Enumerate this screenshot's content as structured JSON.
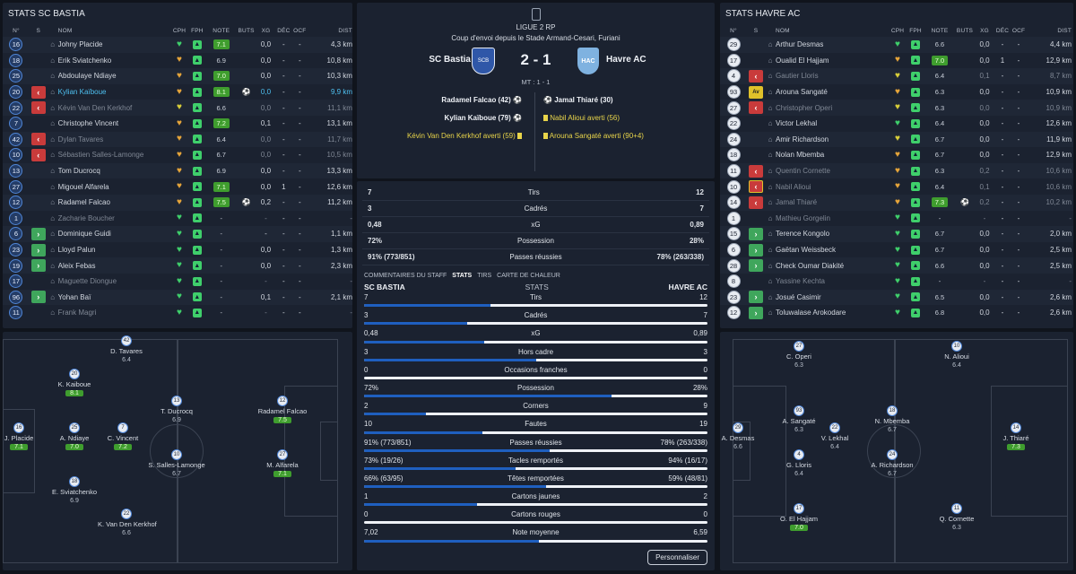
{
  "left": {
    "title": "STATS SC BASTIA",
    "cols": {
      "no": "N°",
      "s": "S",
      "name": "NOM",
      "cph": "CPH",
      "fph": "FPH",
      "note": "NOTE",
      "buts": "BUTS",
      "xg": "XG",
      "dec": "DÉC",
      "ocf": "OCF",
      "dist": "DIST"
    },
    "rows": [
      {
        "no": "16",
        "sub": "",
        "name": "Johny Placide",
        "cph": "g",
        "note": "7.1",
        "nc": "g",
        "buts": "",
        "xg": "0,0",
        "dec": "-",
        "ocf": "-",
        "dist": "4,3 km",
        "st": ""
      },
      {
        "no": "18",
        "sub": "",
        "name": "Erik Sviatchenko",
        "cph": "o",
        "note": "6.9",
        "nc": "",
        "buts": "",
        "xg": "0,0",
        "dec": "-",
        "ocf": "-",
        "dist": "10,8 km",
        "st": ""
      },
      {
        "no": "25",
        "sub": "",
        "name": "Abdoulaye Ndiaye",
        "cph": "o",
        "note": "7.0",
        "nc": "g",
        "buts": "",
        "xg": "0,0",
        "dec": "-",
        "ocf": "-",
        "dist": "10,3 km",
        "st": ""
      },
      {
        "no": "20",
        "sub": "out",
        "name": "Kylian Kaïboue",
        "cph": "o",
        "note": "8.1",
        "nc": "g",
        "buts": "⚽",
        "xg": "0,0",
        "dec": "-",
        "ocf": "-",
        "dist": "9,9 km",
        "st": "hl"
      },
      {
        "no": "22",
        "sub": "out",
        "name": "Kévin Van Den Kerkhof",
        "cph": "y",
        "note": "6.6",
        "nc": "",
        "buts": "",
        "xg": "0,0",
        "dec": "-",
        "ocf": "-",
        "dist": "11,1 km",
        "st": "dim"
      },
      {
        "no": "7",
        "sub": "",
        "name": "Christophe Vincent",
        "cph": "o",
        "note": "7.2",
        "nc": "g",
        "buts": "",
        "xg": "0,1",
        "dec": "-",
        "ocf": "-",
        "dist": "13,1 km",
        "st": ""
      },
      {
        "no": "42",
        "sub": "out",
        "name": "Dylan Tavares",
        "cph": "o",
        "note": "6.4",
        "nc": "",
        "buts": "",
        "xg": "0,0",
        "dec": "-",
        "ocf": "-",
        "dist": "11,7 km",
        "st": "dim"
      },
      {
        "no": "10",
        "sub": "out",
        "name": "Sébastien Salles-Lamonge",
        "cph": "o",
        "note": "6.7",
        "nc": "",
        "buts": "",
        "xg": "0,0",
        "dec": "-",
        "ocf": "-",
        "dist": "10,5 km",
        "st": "dim"
      },
      {
        "no": "13",
        "sub": "",
        "name": "Tom Ducrocq",
        "cph": "o",
        "note": "6.9",
        "nc": "",
        "buts": "",
        "xg": "0,0",
        "dec": "-",
        "ocf": "-",
        "dist": "13,3 km",
        "st": ""
      },
      {
        "no": "27",
        "sub": "",
        "name": "Migouel Alfarela",
        "cph": "o",
        "note": "7.1",
        "nc": "g",
        "buts": "",
        "xg": "0,0",
        "dec": "1",
        "ocf": "-",
        "dist": "12,6 km",
        "st": ""
      },
      {
        "no": "12",
        "sub": "",
        "name": "Radamel Falcao",
        "cph": "o",
        "note": "7.5",
        "nc": "g",
        "buts": "⚽",
        "xg": "0,2",
        "dec": "-",
        "ocf": "-",
        "dist": "11,2 km",
        "st": ""
      },
      {
        "no": "1",
        "sub": "",
        "name": "Zacharie Boucher",
        "cph": "g",
        "note": "-",
        "nc": "",
        "buts": "",
        "xg": "-",
        "dec": "-",
        "ocf": "-",
        "dist": "-",
        "st": "dim"
      },
      {
        "no": "6",
        "sub": "in",
        "name": "Dominique Guidi",
        "cph": "g",
        "note": "-",
        "nc": "",
        "buts": "",
        "xg": "-",
        "dec": "-",
        "ocf": "-",
        "dist": "1,1 km",
        "st": ""
      },
      {
        "no": "23",
        "sub": "in",
        "name": "Lloyd Palun",
        "cph": "g",
        "note": "-",
        "nc": "",
        "buts": "",
        "xg": "0,0",
        "dec": "-",
        "ocf": "-",
        "dist": "1,3 km",
        "st": ""
      },
      {
        "no": "19",
        "sub": "in",
        "name": "Aleix Febas",
        "cph": "g",
        "note": "-",
        "nc": "",
        "buts": "",
        "xg": "0,0",
        "dec": "-",
        "ocf": "-",
        "dist": "2,3 km",
        "st": ""
      },
      {
        "no": "17",
        "sub": "",
        "name": "Maguette Diongue",
        "cph": "g",
        "note": "-",
        "nc": "",
        "buts": "",
        "xg": "-",
        "dec": "-",
        "ocf": "-",
        "dist": "-",
        "st": "dim"
      },
      {
        "no": "96",
        "sub": "in",
        "name": "Yohan Baï",
        "cph": "g",
        "note": "-",
        "nc": "",
        "buts": "",
        "xg": "0,1",
        "dec": "-",
        "ocf": "-",
        "dist": "2,1 km",
        "st": ""
      },
      {
        "no": "11",
        "sub": "",
        "name": "Frank Magri",
        "cph": "g",
        "note": "-",
        "nc": "",
        "buts": "",
        "xg": "-",
        "dec": "-",
        "ocf": "-",
        "dist": "-",
        "st": "dim"
      }
    ],
    "pitch": [
      {
        "no": "42",
        "name": "D. Tavares",
        "note": "6.4",
        "g": false
      },
      {
        "no": "20",
        "name": "K. Kaiboue",
        "note": "8.1",
        "g": true
      },
      {
        "no": "13",
        "name": "T. Ducrocq",
        "note": "6.9",
        "g": false
      },
      {
        "no": "12",
        "name": "Radamel Falcao",
        "note": "7.5",
        "g": true
      },
      {
        "no": "16",
        "name": "J. Placide",
        "note": "7.1",
        "g": true
      },
      {
        "no": "25",
        "name": "A. Ndiaye",
        "note": "7.0",
        "g": true
      },
      {
        "no": "7",
        "name": "C. Vincent",
        "note": "7.2",
        "g": true
      },
      {
        "no": "10",
        "name": "S. Salles-Lamonge",
        "note": "6.7",
        "g": false
      },
      {
        "no": "27",
        "name": "M. Alfarela",
        "note": "7.1",
        "g": true
      },
      {
        "no": "18",
        "name": "E. Sviatchenko",
        "note": "6.9",
        "g": false
      },
      {
        "no": "22",
        "name": "K. Van Den Kerkhof",
        "note": "6.6",
        "g": false
      }
    ]
  },
  "right": {
    "title": "STATS HAVRE AC",
    "cols": {
      "no": "N°",
      "s": "S",
      "name": "NOM",
      "cph": "CPH",
      "fph": "FPH",
      "note": "NOTE",
      "buts": "BUTS",
      "xg": "XG",
      "dec": "DÉC",
      "ocf": "OCF",
      "dist": "DIST"
    },
    "rows": [
      {
        "no": "29",
        "sub": "",
        "name": "Arthur Desmas",
        "cph": "g",
        "note": "6.6",
        "nc": "",
        "buts": "",
        "xg": "0,0",
        "dec": "-",
        "ocf": "-",
        "dist": "4,4 km",
        "st": "",
        "nw": true
      },
      {
        "no": "17",
        "sub": "",
        "name": "Oualid El Hajjam",
        "cph": "o",
        "note": "7.0",
        "nc": "g",
        "buts": "",
        "xg": "0,0",
        "dec": "1",
        "ocf": "-",
        "dist": "12,9 km",
        "st": "",
        "nw": true
      },
      {
        "no": "4",
        "sub": "out",
        "name": "Gautier Lloris",
        "cph": "y",
        "note": "6.4",
        "nc": "",
        "buts": "",
        "xg": "0,1",
        "dec": "-",
        "ocf": "-",
        "dist": "8,7 km",
        "st": "dim",
        "nw": true
      },
      {
        "no": "93",
        "sub": "av",
        "name": "Arouna Sangaté",
        "cph": "o",
        "note": "6.3",
        "nc": "",
        "buts": "",
        "xg": "0,0",
        "dec": "-",
        "ocf": "-",
        "dist": "10,9 km",
        "st": "",
        "nw": true
      },
      {
        "no": "27",
        "sub": "out",
        "name": "Christopher Operi",
        "cph": "y",
        "note": "6.3",
        "nc": "",
        "buts": "",
        "xg": "0,0",
        "dec": "-",
        "ocf": "-",
        "dist": "10,9 km",
        "st": "dim",
        "nw": true
      },
      {
        "no": "22",
        "sub": "",
        "name": "Victor Lekhal",
        "cph": "g",
        "note": "6.4",
        "nc": "",
        "buts": "",
        "xg": "0,0",
        "dec": "-",
        "ocf": "-",
        "dist": "12,6 km",
        "st": "",
        "nw": true
      },
      {
        "no": "24",
        "sub": "",
        "name": "Amir Richardson",
        "cph": "y",
        "note": "6.7",
        "nc": "",
        "buts": "",
        "xg": "0,0",
        "dec": "-",
        "ocf": "-",
        "dist": "11,9 km",
        "st": "",
        "nw": true
      },
      {
        "no": "18",
        "sub": "",
        "name": "Nolan Mbemba",
        "cph": "o",
        "note": "6.7",
        "nc": "",
        "buts": "",
        "xg": "0,0",
        "dec": "-",
        "ocf": "-",
        "dist": "12,9 km",
        "st": "",
        "nw": true
      },
      {
        "no": "11",
        "sub": "out",
        "name": "Quentin Cornette",
        "cph": "o",
        "note": "6.3",
        "nc": "",
        "buts": "",
        "xg": "0,2",
        "dec": "-",
        "ocf": "-",
        "dist": "10,6 km",
        "st": "dim",
        "nw": true
      },
      {
        "no": "10",
        "sub": "outy",
        "name": "Nabil Alioui",
        "cph": "o",
        "note": "6.4",
        "nc": "",
        "buts": "",
        "xg": "0,1",
        "dec": "-",
        "ocf": "-",
        "dist": "10,6 km",
        "st": "dim",
        "nw": true
      },
      {
        "no": "14",
        "sub": "out",
        "name": "Jamal Thiaré",
        "cph": "o",
        "note": "7.3",
        "nc": "g",
        "buts": "⚽",
        "xg": "0,2",
        "dec": "-",
        "ocf": "-",
        "dist": "10,2 km",
        "st": "dim",
        "nw": true
      },
      {
        "no": "1",
        "sub": "",
        "name": "Mathieu Gorgelin",
        "cph": "g",
        "note": "-",
        "nc": "",
        "buts": "",
        "xg": "-",
        "dec": "-",
        "ocf": "-",
        "dist": "-",
        "st": "dim",
        "nw": true
      },
      {
        "no": "15",
        "sub": "in",
        "name": "Terence Kongolo",
        "cph": "g",
        "note": "6.7",
        "nc": "",
        "buts": "",
        "xg": "0,0",
        "dec": "-",
        "ocf": "-",
        "dist": "2,0 km",
        "st": "",
        "nw": true
      },
      {
        "no": "6",
        "sub": "in",
        "name": "Gaëtan Weissbeck",
        "cph": "g",
        "note": "6.7",
        "nc": "",
        "buts": "",
        "xg": "0,0",
        "dec": "-",
        "ocf": "-",
        "dist": "2,5 km",
        "st": "",
        "nw": true
      },
      {
        "no": "28",
        "sub": "in",
        "name": "Check Oumar Diakité",
        "cph": "g",
        "note": "6.6",
        "nc": "",
        "buts": "",
        "xg": "0,0",
        "dec": "-",
        "ocf": "-",
        "dist": "2,5 km",
        "st": "",
        "nw": true
      },
      {
        "no": "8",
        "sub": "",
        "name": "Yassine Kechta",
        "cph": "g",
        "note": "-",
        "nc": "",
        "buts": "",
        "xg": "-",
        "dec": "-",
        "ocf": "-",
        "dist": "-",
        "st": "dim",
        "nw": true
      },
      {
        "no": "23",
        "sub": "in",
        "name": "Josué Casimir",
        "cph": "g",
        "note": "6.5",
        "nc": "",
        "buts": "",
        "xg": "0,0",
        "dec": "-",
        "ocf": "-",
        "dist": "2,6 km",
        "st": "",
        "nw": true
      },
      {
        "no": "12",
        "sub": "in",
        "name": "Toluwalase Arokodare",
        "cph": "g",
        "note": "6.8",
        "nc": "",
        "buts": "",
        "xg": "0,0",
        "dec": "-",
        "ocf": "-",
        "dist": "2,6 km",
        "st": "",
        "nw": true
      }
    ],
    "pitch": [
      {
        "no": "27",
        "name": "C. Operi",
        "note": "6.3",
        "g": false
      },
      {
        "no": "10",
        "name": "N. Alioui",
        "note": "6.4",
        "g": false
      },
      {
        "no": "93",
        "name": "A. Sangaté",
        "note": "6.3",
        "g": false
      },
      {
        "no": "18",
        "name": "N. Mbemba",
        "note": "6.7",
        "g": false
      },
      {
        "no": "29",
        "name": "A. Desmas",
        "note": "6.6",
        "g": false
      },
      {
        "no": "22",
        "name": "V. Lekhal",
        "note": "6.4",
        "g": false
      },
      {
        "no": "14",
        "name": "J. Thiaré",
        "note": "7.3",
        "g": true
      },
      {
        "no": "4",
        "name": "G. Lloris",
        "note": "6.4",
        "g": false
      },
      {
        "no": "24",
        "name": "A. Richardson",
        "note": "6.7",
        "g": false
      },
      {
        "no": "17",
        "name": "O. El Hajjam",
        "note": "7.0",
        "g": true
      },
      {
        "no": "11",
        "name": "Q. Cornette",
        "note": "6.3",
        "g": false
      }
    ]
  },
  "match": {
    "league": "LIGUE 2 RP",
    "venue": "Coup d'envoi depuis le Stade Armand-Cesari, Furiani",
    "home": "SC Bastia",
    "away": "Havre AC",
    "score": "2 - 1",
    "ht": "MT : 1 - 1",
    "home_badge": "SCB",
    "away_badge": "HAC",
    "events_home": [
      {
        "t": "Radamel Falcao (42)",
        "k": "goal"
      },
      {
        "t": "Kylian Kaïboue (79)",
        "k": "goal"
      },
      {
        "t": "Kévin Van Den Kerkhof averti (59)",
        "k": "card"
      }
    ],
    "events_away": [
      {
        "t": "Jamal Thiaré (30)",
        "k": "goal"
      },
      {
        "t": "Nabil Alioui averti (56)",
        "k": "card"
      },
      {
        "t": "Arouna Sangaté averti (90+4)",
        "k": "card"
      }
    ],
    "summary": [
      {
        "h": "7",
        "l": "Tirs",
        "a": "12"
      },
      {
        "h": "3",
        "l": "Cadrés",
        "a": "7"
      },
      {
        "h": "0,48",
        "l": "xG",
        "a": "0,89"
      },
      {
        "h": "72%",
        "l": "Possession",
        "a": "28%"
      },
      {
        "h": "91% (773/851)",
        "l": "Passes réussies",
        "a": "78% (263/338)"
      }
    ],
    "tabs": [
      "COMMENTAIRES DU STAFF",
      "STATS",
      "TIRS",
      "CARTE DE CHALEUR"
    ],
    "stats_header": {
      "h": "SC BASTIA",
      "m": "STATS",
      "a": "HAVRE AC"
    },
    "stats": [
      {
        "h": "7",
        "l": "Tirs",
        "a": "12",
        "f": 0.368
      },
      {
        "h": "3",
        "l": "Cadrés",
        "a": "7",
        "f": 0.3
      },
      {
        "h": "0,48",
        "l": "xG",
        "a": "0,89",
        "f": 0.35
      },
      {
        "h": "3",
        "l": "Hors cadre",
        "a": "3",
        "f": 0.5
      },
      {
        "h": "0",
        "l": "Occasions franches",
        "a": "0",
        "f": 0
      },
      {
        "h": "72%",
        "l": "Possession",
        "a": "28%",
        "f": 0.72
      },
      {
        "h": "2",
        "l": "Corners",
        "a": "9",
        "f": 0.18
      },
      {
        "h": "10",
        "l": "Fautes",
        "a": "19",
        "f": 0.345
      },
      {
        "h": "91% (773/851)",
        "l": "Passes réussies",
        "a": "78% (263/338)",
        "f": 0.54
      },
      {
        "h": "73% (19/26)",
        "l": "Tacles remportés",
        "a": "94% (16/17)",
        "f": 0.44
      },
      {
        "h": "66% (63/95)",
        "l": "Têtes remportées",
        "a": "59% (48/81)",
        "f": 0.53
      },
      {
        "h": "1",
        "l": "Cartons jaunes",
        "a": "2",
        "f": 0.33
      },
      {
        "h": "0",
        "l": "Cartons rouges",
        "a": "0",
        "f": 0
      },
      {
        "h": "7,02",
        "l": "Note moyenne",
        "a": "6,59",
        "f": 0.51
      }
    ],
    "button": "Personnaliser"
  }
}
